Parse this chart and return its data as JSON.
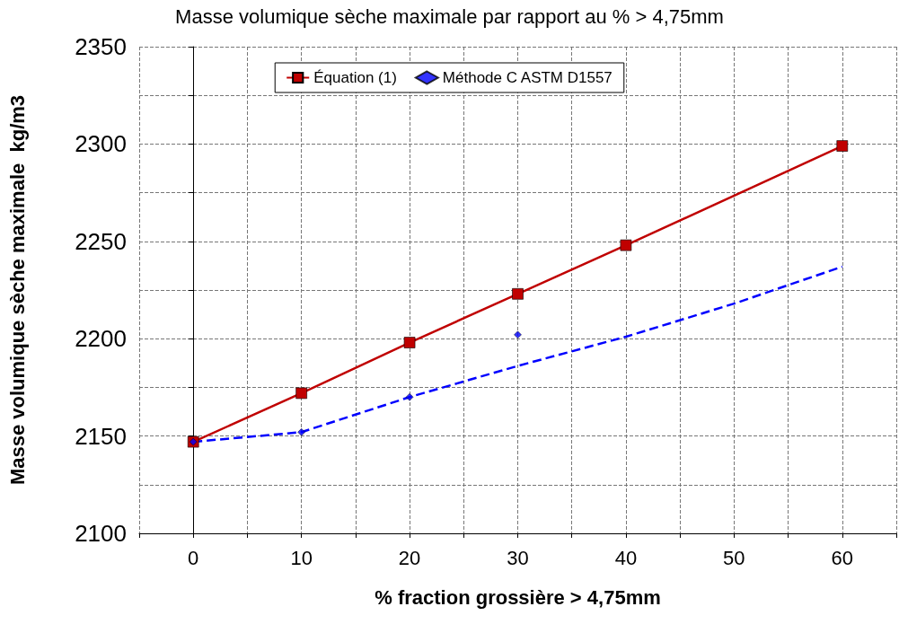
{
  "chart_data": {
    "type": "line",
    "title": "Masse volumique sèche maximale par rapport au % > 4,75mm",
    "xlabel": "% fraction grossière > 4,75mm",
    "ylabel": "Masse volumique sèche maximale  kg/m3",
    "xlim": [
      -5,
      65
    ],
    "xticks": [
      {
        "value": -5,
        "label": null
      },
      0,
      {
        "value": 5,
        "label": null
      },
      10,
      {
        "value": 15,
        "label": null
      },
      20,
      {
        "value": 25,
        "label": null
      },
      30,
      {
        "value": 35,
        "label": null
      },
      40,
      {
        "value": 45,
        "label": null
      },
      50,
      {
        "value": 55,
        "label": null
      },
      60,
      {
        "value": 65,
        "label": null
      }
    ],
    "ylim": [
      2100,
      2350
    ],
    "yticks": [
      2100,
      {
        "value": 2125,
        "label": null
      },
      2150,
      {
        "value": 2175,
        "label": null
      },
      2200,
      {
        "value": 2225,
        "label": null
      },
      2250,
      {
        "value": 2275,
        "label": null
      },
      2300,
      {
        "value": 2325,
        "label": null
      },
      2350
    ],
    "grid": true,
    "legend": "top",
    "series": [
      {
        "name": "Équation (1)",
        "type": "line",
        "color": "#c00000",
        "marker": "square",
        "line_style": "solid",
        "x": [
          0,
          10,
          20,
          30,
          40,
          60
        ],
        "values": [
          2147,
          2172,
          2198,
          2223,
          2248,
          2299
        ]
      },
      {
        "name": "Méthode C ASTM D1557",
        "type": "scatter",
        "color": "#0000ff",
        "marker": "diamond",
        "x": [
          0,
          10,
          20,
          30
        ],
        "values": [
          2147,
          2152,
          2170,
          2202
        ]
      },
      {
        "type": "line",
        "color": "#0000ff",
        "marker": "none",
        "line_style": "dashed",
        "x": [
          0,
          10,
          20,
          30,
          40,
          50,
          60
        ],
        "values": [
          2147,
          2152,
          2170,
          2186,
          2201,
          2218,
          2237
        ]
      }
    ]
  }
}
